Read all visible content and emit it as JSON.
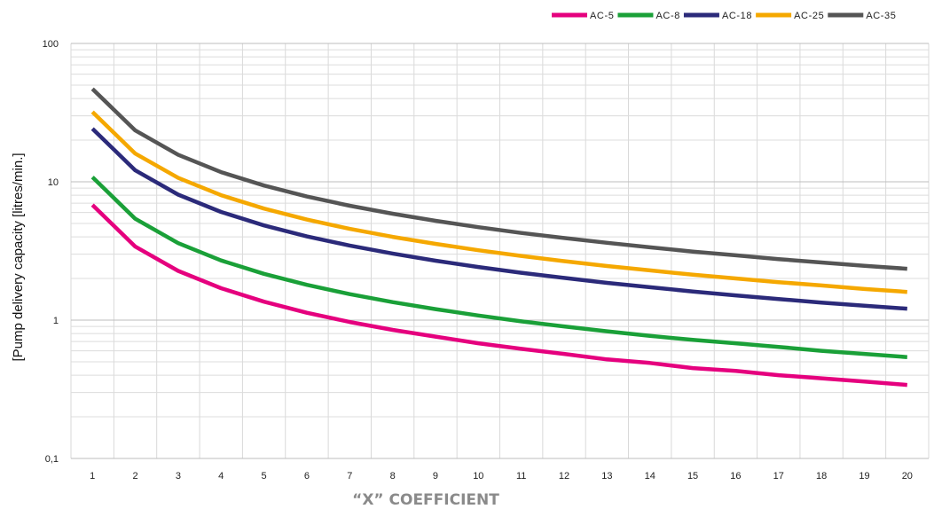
{
  "chart_data": {
    "type": "line",
    "xlabel": "“X” COEFFICIENT",
    "ylabel": "[Pump delivery capacity [litres/min.]",
    "y_scale": "log",
    "ylim": [
      0.1,
      100
    ],
    "y_tick_labels": [
      "0,1",
      "1",
      "10",
      "100"
    ],
    "x": [
      1,
      2,
      3,
      4,
      5,
      6,
      7,
      8,
      9,
      10,
      11,
      12,
      13,
      14,
      15,
      16,
      17,
      18,
      19,
      20
    ],
    "grid": true,
    "legend_position": "top-right",
    "series": [
      {
        "name": "AC-5",
        "color": "#e5007e",
        "values": [
          6.8,
          3.4,
          2.27,
          1.7,
          1.36,
          1.13,
          0.97,
          0.85,
          0.76,
          0.68,
          0.62,
          0.57,
          0.52,
          0.49,
          0.45,
          0.43,
          0.4,
          0.38,
          0.36,
          0.34
        ]
      },
      {
        "name": "AC-8",
        "color": "#1aa038",
        "values": [
          10.8,
          5.4,
          3.6,
          2.7,
          2.16,
          1.8,
          1.54,
          1.35,
          1.2,
          1.08,
          0.98,
          0.9,
          0.83,
          0.77,
          0.72,
          0.68,
          0.64,
          0.6,
          0.57,
          0.54
        ]
      },
      {
        "name": "AC-18",
        "color": "#2b2a7a",
        "values": [
          24.2,
          12.1,
          8.07,
          6.05,
          4.84,
          4.03,
          3.46,
          3.03,
          2.69,
          2.42,
          2.2,
          2.02,
          1.86,
          1.73,
          1.61,
          1.51,
          1.42,
          1.34,
          1.27,
          1.21
        ]
      },
      {
        "name": "AC-25",
        "color": "#f5a800",
        "values": [
          32,
          16.0,
          10.67,
          8.0,
          6.4,
          5.33,
          4.57,
          4.0,
          3.56,
          3.2,
          2.91,
          2.67,
          2.46,
          2.29,
          2.13,
          2.0,
          1.88,
          1.78,
          1.68,
          1.6
        ]
      },
      {
        "name": "AC-35",
        "color": "#555555",
        "values": [
          47,
          23.5,
          15.67,
          11.75,
          9.4,
          7.83,
          6.71,
          5.88,
          5.22,
          4.7,
          4.27,
          3.92,
          3.62,
          3.36,
          3.13,
          2.94,
          2.76,
          2.61,
          2.47,
          2.35
        ]
      }
    ]
  }
}
